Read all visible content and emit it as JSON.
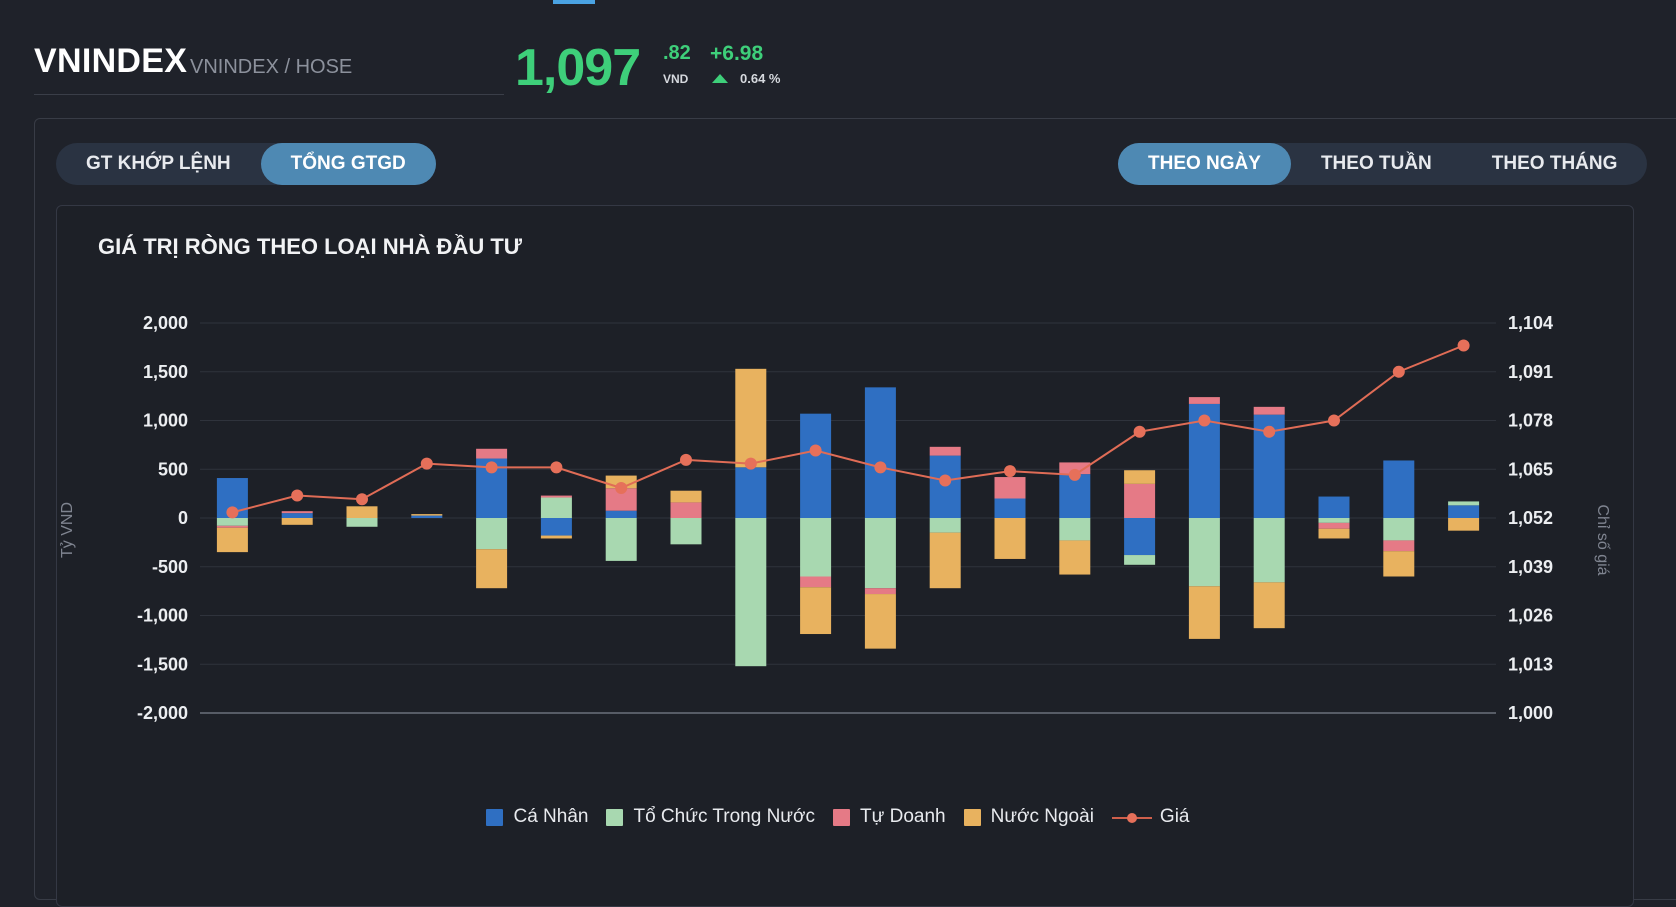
{
  "header": {
    "symbol": "VNINDEX",
    "exchange": "VNINDEX / HOSE",
    "price_int": "1,097",
    "price_dec": ".82",
    "unit": "VND",
    "change": "+6.98",
    "change_pct": "0.64 %"
  },
  "tabs_left": [
    {
      "label": "GT KHỚP LỆNH",
      "active": false
    },
    {
      "label": "TỔNG GTGD",
      "active": true
    }
  ],
  "tabs_right": [
    {
      "label": "THEO NGÀY",
      "active": true
    },
    {
      "label": "THEO TUẦN",
      "active": false
    },
    {
      "label": "THEO THÁNG",
      "active": false
    }
  ],
  "chart_title": "GIÁ TRỊ RÒNG THEO LOẠI NHÀ ĐẦU TƯ",
  "colors": {
    "ca_nhan": "#2f6fc2",
    "to_chuc": "#a8d8b0",
    "tu_doanh": "#e57a86",
    "nuoc_ngoai": "#e8b25f",
    "gia": "#e06c56",
    "up": "#3ecf7a"
  },
  "chart_data": {
    "type": "bar",
    "stacked": true,
    "y_left_label": "Tỷ VND",
    "y_right_label": "Chỉ số giá",
    "ylim": [
      -2000,
      2000
    ],
    "y_ticks": [
      "2,000",
      "1,500",
      "1,000",
      "500",
      "0",
      "-500",
      "-1,000",
      "-1,500",
      "-2,000"
    ],
    "y2lim": [
      1000,
      1104
    ],
    "y2_ticks": [
      "1,104",
      "1,091",
      "1,078",
      "1,065",
      "1,052",
      "1,039",
      "1,026",
      "1,013",
      "1,000"
    ],
    "grid": true,
    "legend_position": "bottom-center",
    "series": [
      {
        "name": "Cá Nhân",
        "values": [
          410,
          50,
          0,
          25,
          610,
          -180,
          75,
          0,
          520,
          1070,
          1340,
          640,
          200,
          450,
          -380,
          1170,
          1060,
          220,
          590,
          130
        ]
      },
      {
        "name": "Tổ Chức Trong Nước",
        "values": [
          -80,
          0,
          -90,
          0,
          -320,
          210,
          -440,
          -270,
          -1520,
          -600,
          -720,
          -150,
          0,
          -230,
          -100,
          -700,
          -660,
          -50,
          -230,
          40
        ]
      },
      {
        "name": "Tự Doanh",
        "values": [
          -20,
          20,
          0,
          0,
          100,
          20,
          230,
          160,
          0,
          -110,
          -60,
          90,
          220,
          120,
          350,
          70,
          80,
          -60,
          -110,
          0
        ]
      },
      {
        "name": "Nước Ngoài",
        "values": [
          -250,
          -70,
          120,
          15,
          -400,
          -30,
          130,
          120,
          1010,
          -480,
          -560,
          -570,
          -420,
          -350,
          140,
          -540,
          -470,
          -100,
          -260,
          -130
        ]
      },
      {
        "name": "Giá",
        "axis": "right",
        "values": [
          1053.5,
          1058,
          1057,
          1066.5,
          1065.5,
          1065.5,
          1060,
          1067.5,
          1066.5,
          1070,
          1065.5,
          1062,
          1064.5,
          1063.5,
          1075,
          1078,
          1075,
          1078,
          1091,
          1098
        ]
      }
    ]
  }
}
